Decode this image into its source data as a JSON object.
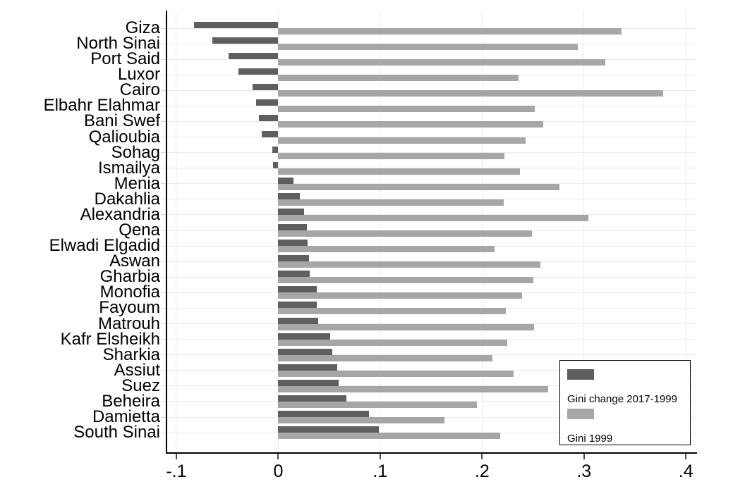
{
  "chart_data": {
    "type": "bar",
    "orientation": "horizontal",
    "title": "",
    "xlabel": "",
    "ylabel": "",
    "xlim": [
      -0.11,
      0.41
    ],
    "grid": true,
    "legend_position": "bottom-right",
    "x_ticks": [
      -0.1,
      0,
      0.1,
      0.2,
      0.3,
      0.4
    ],
    "x_tick_labels": [
      "-.1",
      "0",
      ".1",
      ".2",
      ".3",
      ".4"
    ],
    "categories": [
      "Giza",
      "North Sinai",
      "Port Said",
      "Luxor",
      "Cairo",
      "Elbahr Elahmar",
      "Bani Swef",
      "Qalioubia",
      "Sohag",
      "Ismailya",
      "Menia",
      "Dakahlia",
      "Alexandria",
      "Qena",
      "Elwadi Elgadid",
      "Aswan",
      "Gharbia",
      "Monofia",
      "Fayoum",
      "Matrouh",
      "Kafr Elsheikh",
      "Sharkia",
      "Assiut",
      "Suez",
      "Beheira",
      "Damietta",
      "South Sinai"
    ],
    "series": [
      {
        "name": "Gini change 2017-1999",
        "color": "#5f5f5f",
        "values": [
          -0.083,
          -0.065,
          -0.049,
          -0.039,
          -0.025,
          -0.022,
          -0.019,
          -0.016,
          -0.006,
          -0.005,
          0.015,
          0.021,
          0.025,
          0.028,
          0.029,
          0.03,
          0.031,
          0.038,
          0.038,
          0.039,
          0.051,
          0.053,
          0.058,
          0.059,
          0.067,
          0.089,
          0.099
        ]
      },
      {
        "name": "Gini 1999",
        "color": "#a6a6a6",
        "values": [
          0.337,
          0.294,
          0.321,
          0.236,
          0.378,
          0.252,
          0.26,
          0.243,
          0.222,
          0.237,
          0.276,
          0.221,
          0.304,
          0.249,
          0.212,
          0.257,
          0.25,
          0.239,
          0.223,
          0.251,
          0.225,
          0.21,
          0.231,
          0.265,
          0.195,
          0.163,
          0.218
        ]
      }
    ],
    "colors": {
      "background": "#ffffff",
      "gridline": "#eaeaea",
      "axis": "#000000",
      "text": "#000000"
    }
  }
}
